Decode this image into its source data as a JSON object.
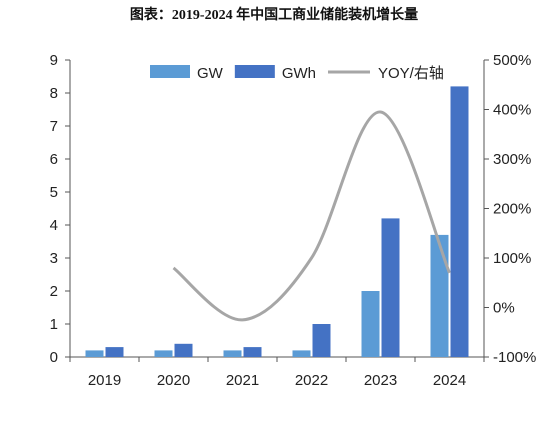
{
  "title": "图表：2019-2024 年中国工商业储能装机增长量",
  "chart_data": {
    "type": "bar",
    "categories": [
      "2019",
      "2020",
      "2021",
      "2022",
      "2023",
      "2024"
    ],
    "series": [
      {
        "name": "GW",
        "type": "bar",
        "axis": "left",
        "color": "#5b9bd5",
        "values": [
          0.2,
          0.2,
          0.2,
          0.2,
          2.0,
          3.7
        ]
      },
      {
        "name": "GWh",
        "type": "bar",
        "axis": "left",
        "color": "#4472c4",
        "values": [
          0.3,
          0.4,
          0.3,
          1.0,
          4.2,
          8.2
        ]
      },
      {
        "name": "YOY/右轴",
        "type": "line",
        "axis": "right",
        "color": "#a6a6a6",
        "values": [
          null,
          80,
          -25,
          100,
          395,
          70
        ]
      }
    ],
    "y_left": {
      "range": [
        0,
        9
      ],
      "ticks": [
        "0",
        "1",
        "2",
        "3",
        "4",
        "5",
        "6",
        "7",
        "8",
        "9"
      ]
    },
    "y_right": {
      "range": [
        -100,
        500
      ],
      "ticks": [
        "-100%",
        "0%",
        "100%",
        "200%",
        "300%",
        "400%",
        "500%"
      ]
    },
    "grid": false,
    "legend_position": "top"
  }
}
